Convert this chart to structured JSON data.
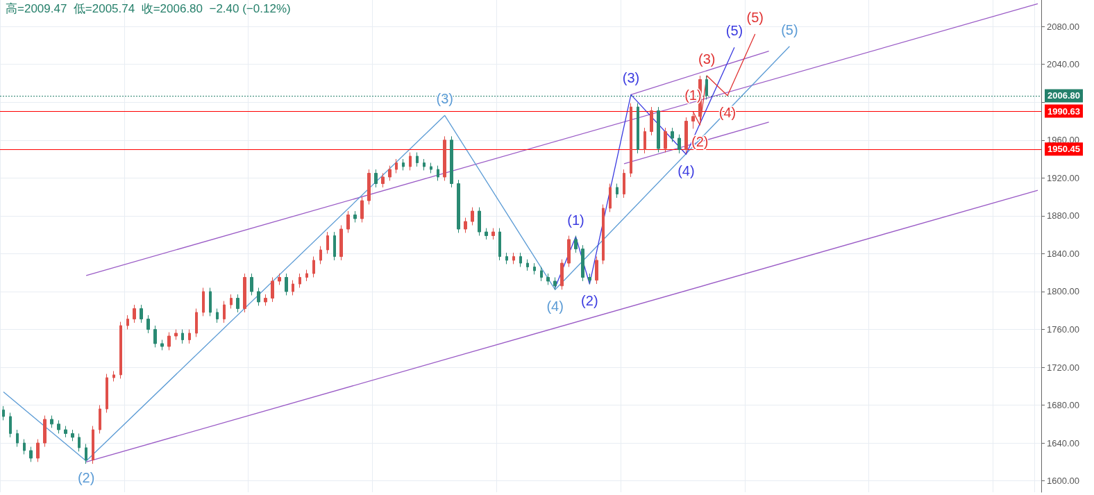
{
  "chart_data": {
    "type": "candlestick",
    "annotations": [
      "高=2009.47  低=2005.74  收=2006.80  −2.40 (−0.12%)",
      {
        "text": "(2)",
        "y": 1621
      },
      {
        "text": "(3)",
        "y": 1986
      },
      {
        "text": "(4)",
        "y": 1802
      },
      {
        "text": "(5)",
        "y": 2059
      },
      {
        "text": "(1)",
        "y": 1858
      },
      {
        "text": "(2)",
        "y": 1808
      },
      {
        "text": "(3)",
        "y": 2008
      },
      {
        "text": "(4)",
        "y": 1945
      },
      {
        "text": "(5)",
        "y": 2058
      },
      {
        "text": "(1)",
        "y": 1990
      },
      {
        "text": "(2)",
        "y": 1976
      },
      {
        "text": "(3)",
        "y": 2028
      },
      {
        "text": "(4)",
        "y": 2007
      },
      {
        "text": "(5)",
        "y": 2072
      }
    ],
    "categories": [
      null,
      null,
      null,
      null,
      null,
      null,
      null,
      null,
      null,
      null,
      null,
      null,
      null,
      null,
      null,
      null,
      null,
      null,
      null,
      null,
      null,
      null,
      null,
      null,
      null,
      null,
      null,
      null,
      null,
      null,
      null,
      null,
      null,
      null,
      null,
      null,
      null,
      null,
      null,
      null,
      null,
      null,
      null,
      null,
      null,
      null,
      null,
      null,
      null,
      null,
      null,
      null,
      null,
      null,
      null,
      null,
      null,
      null,
      null,
      null,
      null,
      null,
      null,
      null,
      null,
      null,
      null,
      null,
      null,
      null,
      null,
      null,
      null,
      null,
      null,
      null,
      null,
      null,
      null,
      null,
      null,
      null,
      null,
      null,
      null,
      null,
      null,
      null,
      null,
      null,
      null,
      null,
      null,
      null,
      null,
      null,
      null,
      null,
      null,
      null,
      null,
      null,
      null,
      null,
      null,
      null,
      null,
      null,
      null,
      null,
      null,
      null,
      null,
      null,
      null,
      null,
      null,
      null,
      null,
      null,
      null,
      null,
      null,
      null,
      null,
      null,
      null,
      null,
      null,
      null,
      null,
      null,
      null,
      null,
      null,
      null,
      null,
      null,
      null,
      null,
      null,
      null,
      null,
      null,
      null,
      null,
      null,
      null,
      null,
      null,
      null
    ],
    "ohlc": [
      [
        1675,
        1679,
        1664,
        1668
      ],
      [
        1668,
        1672,
        1646,
        1650
      ],
      [
        1650,
        1654,
        1636,
        1640
      ],
      [
        1640,
        1644,
        1628,
        1632
      ],
      [
        1632,
        1636,
        1620,
        1624
      ],
      [
        1624,
        1644,
        1620,
        1640
      ],
      [
        1640,
        1669,
        1636,
        1665
      ],
      [
        1665,
        1669,
        1656,
        1660
      ],
      [
        1660,
        1664,
        1650,
        1654
      ],
      [
        1654,
        1658,
        1646,
        1650
      ],
      [
        1650,
        1654,
        1642,
        1646
      ],
      [
        1646,
        1650,
        1631,
        1635
      ],
      [
        1635,
        1639,
        1618,
        1622
      ],
      [
        1622,
        1658,
        1618,
        1654
      ],
      [
        1654,
        1680,
        1650,
        1676
      ],
      [
        1676,
        1713,
        1672,
        1709
      ],
      [
        1709,
        1716,
        1705,
        1712
      ],
      [
        1712,
        1768,
        1708,
        1764
      ],
      [
        1764,
        1775,
        1760,
        1771
      ],
      [
        1771,
        1786,
        1767,
        1782
      ],
      [
        1782,
        1786,
        1767,
        1771
      ],
      [
        1771,
        1775,
        1756,
        1760
      ],
      [
        1760,
        1764,
        1741,
        1745
      ],
      [
        1745,
        1749,
        1738,
        1742
      ],
      [
        1742,
        1757,
        1738,
        1753
      ],
      [
        1753,
        1760,
        1749,
        1756
      ],
      [
        1756,
        1760,
        1745,
        1749
      ],
      [
        1749,
        1760,
        1745,
        1756
      ],
      [
        1756,
        1782,
        1752,
        1778
      ],
      [
        1778,
        1804,
        1774,
        1800
      ],
      [
        1800,
        1804,
        1774,
        1778
      ],
      [
        1778,
        1782,
        1767,
        1771
      ],
      [
        1771,
        1790,
        1767,
        1786
      ],
      [
        1786,
        1797,
        1782,
        1793
      ],
      [
        1793,
        1797,
        1778,
        1782
      ],
      [
        1782,
        1819,
        1778,
        1815
      ],
      [
        1815,
        1819,
        1796,
        1800
      ],
      [
        1800,
        1804,
        1785,
        1789
      ],
      [
        1789,
        1797,
        1785,
        1793
      ],
      [
        1793,
        1815,
        1789,
        1811
      ],
      [
        1811,
        1819,
        1807,
        1815
      ],
      [
        1815,
        1819,
        1796,
        1800
      ],
      [
        1800,
        1812,
        1796,
        1808
      ],
      [
        1808,
        1819,
        1804,
        1815
      ],
      [
        1815,
        1823,
        1811,
        1819
      ],
      [
        1819,
        1837,
        1815,
        1833
      ],
      [
        1833,
        1848,
        1829,
        1844
      ],
      [
        1844,
        1863,
        1840,
        1859
      ],
      [
        1859,
        1863,
        1833,
        1837
      ],
      [
        1837,
        1870,
        1833,
        1866
      ],
      [
        1866,
        1885,
        1862,
        1881
      ],
      [
        1881,
        1885,
        1873,
        1877
      ],
      [
        1877,
        1900,
        1873,
        1896
      ],
      [
        1896,
        1929,
        1892,
        1925
      ],
      [
        1925,
        1929,
        1910,
        1914
      ],
      [
        1914,
        1925,
        1910,
        1921
      ],
      [
        1921,
        1933,
        1917,
        1929
      ],
      [
        1929,
        1940,
        1925,
        1936
      ],
      [
        1936,
        1940,
        1928,
        1932
      ],
      [
        1932,
        1947,
        1928,
        1943
      ],
      [
        1943,
        1947,
        1932,
        1936
      ],
      [
        1936,
        1940,
        1928,
        1932
      ],
      [
        1932,
        1936,
        1925,
        1929
      ],
      [
        1929,
        1933,
        1917,
        1921
      ],
      [
        1921,
        1964,
        1917,
        1960
      ],
      [
        1960,
        1964,
        1910,
        1914
      ],
      [
        1914,
        1918,
        1862,
        1866
      ],
      [
        1866,
        1878,
        1862,
        1874
      ],
      [
        1874,
        1889,
        1870,
        1885
      ],
      [
        1885,
        1889,
        1859,
        1863
      ],
      [
        1863,
        1867,
        1855,
        1859
      ],
      [
        1859,
        1867,
        1855,
        1863
      ],
      [
        1863,
        1867,
        1833,
        1837
      ],
      [
        1837,
        1841,
        1829,
        1833
      ],
      [
        1833,
        1841,
        1829,
        1837
      ],
      [
        1837,
        1841,
        1826,
        1830
      ],
      [
        1830,
        1834,
        1822,
        1826
      ],
      [
        1826,
        1830,
        1818,
        1822
      ],
      [
        1822,
        1826,
        1811,
        1815
      ],
      [
        1815,
        1819,
        1807,
        1811
      ],
      [
        1811,
        1815,
        1802,
        1806
      ],
      [
        1806,
        1834,
        1802,
        1830
      ],
      [
        1830,
        1859,
        1826,
        1855
      ],
      [
        1855,
        1859,
        1841,
        1845
      ],
      [
        1845,
        1849,
        1811,
        1815
      ],
      [
        1815,
        1819,
        1808,
        1812
      ],
      [
        1812,
        1837,
        1808,
        1833
      ],
      [
        1833,
        1892,
        1829,
        1888
      ],
      [
        1888,
        1914,
        1884,
        1910
      ],
      [
        1910,
        1914,
        1899,
        1903
      ],
      [
        1903,
        1929,
        1899,
        1925
      ],
      [
        1925,
        1999,
        1921,
        1995
      ],
      [
        1995,
        1999,
        1946,
        1950
      ],
      [
        1950,
        1973,
        1946,
        1969
      ],
      [
        1969,
        1995,
        1965,
        1991
      ],
      [
        1991,
        1995,
        1947,
        1951
      ],
      [
        1951,
        1973,
        1947,
        1969
      ],
      [
        1969,
        1973,
        1958,
        1962
      ],
      [
        1962,
        1966,
        1946,
        1950
      ],
      [
        1950,
        1984,
        1946,
        1980
      ],
      [
        1980,
        1988,
        1972,
        1985
      ],
      [
        1985,
        2028,
        1981,
        2024
      ],
      [
        2024,
        2028,
        2002.8,
        2006.8
      ],
      null,
      null,
      null,
      null,
      null,
      null,
      null,
      null,
      null,
      null,
      null,
      null,
      null,
      null,
      null,
      null,
      null,
      null,
      null,
      null,
      null,
      null,
      null,
      null,
      null,
      null,
      null,
      null,
      null,
      null,
      null,
      null,
      null,
      null,
      null,
      null,
      null,
      null,
      null,
      null,
      null,
      null,
      null,
      null,
      null,
      null,
      null,
      null
    ],
    "series": [
      {
        "type": "line",
        "color": "#9a5bc6",
        "values": [
          null,
          null,
          null,
          null,
          null,
          null,
          null,
          null,
          null,
          null,
          null,
          null,
          1817,
          null,
          null,
          null,
          null,
          null,
          null,
          null,
          null,
          null,
          null,
          null,
          null,
          null,
          null,
          null,
          null,
          null,
          null,
          null,
          null,
          null,
          null,
          null,
          null,
          null,
          null,
          null,
          null,
          null,
          null,
          null,
          null,
          null,
          null,
          null,
          null,
          null,
          null,
          null,
          null,
          null,
          null,
          null,
          null,
          null,
          null,
          null,
          null,
          null,
          null,
          null,
          null,
          null,
          null,
          null,
          null,
          null,
          null,
          null,
          null,
          null,
          null,
          null,
          null,
          null,
          null,
          null,
          null,
          null,
          null,
          null,
          null,
          null,
          null,
          null,
          null,
          null,
          null,
          null,
          null,
          null,
          null,
          null,
          null,
          null,
          null,
          null,
          null,
          null,
          null,
          null,
          null,
          null,
          null,
          null,
          null,
          null,
          null,
          null,
          null,
          null,
          null,
          null,
          null,
          null,
          null,
          null,
          null,
          null,
          null,
          null,
          null,
          null,
          null,
          null,
          null,
          null,
          null,
          null,
          null,
          null,
          null,
          null,
          null,
          null,
          null,
          null,
          null,
          null,
          null,
          null,
          null,
          null,
          null,
          null,
          null,
          null,
          2104
        ]
      },
      {
        "type": "line",
        "color": "#9a5bc6",
        "values": [
          null,
          null,
          null,
          null,
          null,
          null,
          null,
          null,
          null,
          null,
          null,
          null,
          1620,
          null,
          null,
          null,
          null,
          null,
          null,
          null,
          null,
          null,
          null,
          null,
          null,
          null,
          null,
          null,
          null,
          null,
          null,
          null,
          null,
          null,
          null,
          null,
          null,
          null,
          null,
          null,
          null,
          null,
          null,
          null,
          null,
          null,
          null,
          null,
          null,
          null,
          null,
          null,
          null,
          null,
          null,
          null,
          null,
          null,
          null,
          null,
          null,
          null,
          null,
          null,
          null,
          null,
          null,
          null,
          null,
          null,
          null,
          null,
          null,
          null,
          null,
          null,
          null,
          null,
          null,
          null,
          null,
          null,
          null,
          null,
          null,
          null,
          null,
          null,
          null,
          null,
          null,
          null,
          null,
          null,
          null,
          null,
          null,
          null,
          null,
          null,
          null,
          null,
          null,
          null,
          null,
          null,
          null,
          null,
          null,
          null,
          null,
          null,
          null,
          null,
          null,
          null,
          null,
          null,
          null,
          null,
          null,
          null,
          null,
          null,
          null,
          null,
          null,
          null,
          null,
          null,
          null,
          null,
          null,
          null,
          null,
          null,
          null,
          null,
          null,
          null,
          null,
          null,
          null,
          null,
          null,
          null,
          null,
          null,
          null,
          null,
          1907
        ]
      },
      {
        "type": "line",
        "color": "#9a5bc6",
        "values": [
          null,
          null,
          null,
          null,
          null,
          null,
          null,
          null,
          null,
          null,
          null,
          null,
          null,
          null,
          null,
          null,
          null,
          null,
          null,
          null,
          null,
          null,
          null,
          null,
          null,
          null,
          null,
          null,
          null,
          null,
          null,
          null,
          null,
          null,
          null,
          null,
          null,
          null,
          null,
          null,
          null,
          null,
          null,
          null,
          null,
          null,
          null,
          null,
          null,
          null,
          null,
          null,
          null,
          null,
          null,
          null,
          null,
          null,
          null,
          null,
          null,
          null,
          null,
          null,
          null,
          null,
          null,
          null,
          null,
          null,
          null,
          null,
          null,
          null,
          null,
          null,
          null,
          null,
          null,
          null,
          null,
          null,
          null,
          null,
          null,
          null,
          null,
          null,
          null,
          null,
          null,
          2008,
          null,
          null,
          null,
          null,
          null,
          null,
          null,
          null,
          null,
          null,
          null,
          null,
          null,
          null,
          null,
          null,
          null,
          null,
          null,
          2054,
          null,
          null,
          null,
          null,
          null,
          null,
          null,
          null,
          null,
          null,
          null,
          null,
          null,
          null,
          null,
          null,
          null,
          null,
          null,
          null,
          null,
          null,
          null,
          null,
          null,
          null,
          null,
          null,
          null,
          null,
          null,
          null,
          null,
          null,
          null,
          null,
          null,
          null,
          null
        ]
      },
      {
        "type": "line",
        "color": "#9a5bc6",
        "values": [
          null,
          null,
          null,
          null,
          null,
          null,
          null,
          null,
          null,
          null,
          null,
          null,
          null,
          null,
          null,
          null,
          null,
          null,
          null,
          null,
          null,
          null,
          null,
          null,
          null,
          null,
          null,
          null,
          null,
          null,
          null,
          null,
          null,
          null,
          null,
          null,
          null,
          null,
          null,
          null,
          null,
          null,
          null,
          null,
          null,
          null,
          null,
          null,
          null,
          null,
          null,
          null,
          null,
          null,
          null,
          null,
          null,
          null,
          null,
          null,
          null,
          null,
          null,
          null,
          null,
          null,
          null,
          null,
          null,
          null,
          null,
          null,
          null,
          null,
          null,
          null,
          null,
          null,
          null,
          null,
          null,
          null,
          null,
          null,
          null,
          null,
          null,
          null,
          null,
          null,
          1935,
          null,
          null,
          null,
          null,
          null,
          null,
          null,
          null,
          null,
          null,
          null,
          null,
          null,
          null,
          null,
          null,
          null,
          null,
          null,
          null,
          1979,
          null,
          null,
          null,
          null,
          null,
          null,
          null,
          null,
          null,
          null,
          null,
          null,
          null,
          null,
          null,
          null,
          null,
          null,
          null,
          null,
          null,
          null,
          null,
          null,
          null,
          null,
          null,
          null,
          null,
          null,
          null,
          null,
          null,
          null,
          null,
          null,
          null,
          null,
          null
        ]
      },
      {
        "type": "line",
        "color": "#5b9bd5",
        "values": [
          1694,
          null,
          null,
          null,
          null,
          null,
          null,
          null,
          null,
          null,
          null,
          null,
          1621,
          null,
          null,
          null,
          null,
          null,
          null,
          null,
          null,
          null,
          null,
          null,
          null,
          null,
          null,
          null,
          null,
          null,
          null,
          null,
          null,
          null,
          null,
          null,
          null,
          null,
          null,
          null,
          null,
          null,
          null,
          null,
          null,
          null,
          null,
          null,
          null,
          null,
          null,
          null,
          null,
          null,
          null,
          null,
          null,
          null,
          null,
          null,
          null,
          null,
          null,
          null,
          1986,
          null,
          null,
          null,
          null,
          null,
          null,
          null,
          null,
          null,
          null,
          null,
          null,
          null,
          null,
          null,
          1802,
          null,
          null,
          null,
          null,
          null,
          null,
          null,
          null,
          null,
          null,
          null,
          null,
          null,
          null,
          null,
          null,
          null,
          null,
          null,
          null,
          null,
          null,
          null,
          null,
          null,
          null,
          null,
          null,
          null,
          null,
          null,
          null,
          null,
          2059,
          null,
          null,
          null,
          null,
          null,
          null,
          null,
          null,
          null,
          null,
          null,
          null,
          null,
          null,
          null,
          null,
          null,
          null,
          null,
          null,
          null,
          null,
          null,
          null,
          null,
          null,
          null,
          null,
          null,
          null,
          null,
          null,
          null,
          null,
          null,
          null
        ]
      },
      {
        "type": "line",
        "color": "#3b3be0",
        "values": [
          null,
          null,
          null,
          null,
          null,
          null,
          null,
          null,
          null,
          null,
          null,
          null,
          null,
          null,
          null,
          null,
          null,
          null,
          null,
          null,
          null,
          null,
          null,
          null,
          null,
          null,
          null,
          null,
          null,
          null,
          null,
          null,
          null,
          null,
          null,
          null,
          null,
          null,
          null,
          null,
          null,
          null,
          null,
          null,
          null,
          null,
          null,
          null,
          null,
          null,
          null,
          null,
          null,
          null,
          null,
          null,
          null,
          null,
          null,
          null,
          null,
          null,
          null,
          null,
          null,
          null,
          null,
          null,
          null,
          null,
          null,
          null,
          null,
          null,
          null,
          null,
          null,
          null,
          null,
          null,
          1804,
          null,
          null,
          1858,
          null,
          1808,
          null,
          null,
          null,
          null,
          null,
          2008,
          null,
          null,
          null,
          null,
          null,
          null,
          null,
          1945,
          null,
          null,
          null,
          null,
          null,
          null,
          2058,
          null,
          null,
          null,
          null,
          null,
          null,
          null,
          null,
          null,
          null,
          null,
          null,
          null,
          null,
          null,
          null,
          null,
          null,
          null,
          null,
          null,
          null,
          null,
          null,
          null,
          null,
          null,
          null,
          null,
          null,
          null,
          null,
          null,
          null,
          null,
          null,
          null,
          null,
          null,
          null,
          null,
          null,
          null,
          null
        ]
      },
      {
        "type": "line",
        "color": "#e03333",
        "values": [
          null,
          null,
          null,
          null,
          null,
          null,
          null,
          null,
          null,
          null,
          null,
          null,
          null,
          null,
          null,
          null,
          null,
          null,
          null,
          null,
          null,
          null,
          null,
          null,
          null,
          null,
          null,
          null,
          null,
          null,
          null,
          null,
          null,
          null,
          null,
          null,
          null,
          null,
          null,
          null,
          null,
          null,
          null,
          null,
          null,
          null,
          null,
          null,
          null,
          null,
          null,
          null,
          null,
          null,
          null,
          null,
          null,
          null,
          null,
          null,
          null,
          null,
          null,
          null,
          null,
          null,
          null,
          null,
          null,
          null,
          null,
          null,
          null,
          null,
          null,
          null,
          null,
          null,
          null,
          null,
          null,
          null,
          null,
          null,
          null,
          null,
          null,
          null,
          null,
          null,
          null,
          null,
          null,
          null,
          null,
          null,
          null,
          null,
          null,
          null,
          1990,
          1976,
          2028,
          null,
          null,
          2007,
          null,
          null,
          null,
          2072,
          null,
          null,
          null,
          null,
          null,
          null,
          null,
          null,
          null,
          null,
          null,
          null,
          null,
          null,
          null,
          null,
          null,
          null,
          null,
          null,
          null,
          null,
          null,
          null,
          null,
          null,
          null,
          null,
          null,
          null,
          null,
          null,
          null,
          null,
          null,
          null,
          null,
          null,
          null,
          null,
          null
        ]
      }
    ],
    "ref_lines": [
      {
        "axis": "y",
        "value": 2006.8,
        "label": "2006.80",
        "color": "#24806b",
        "line_style": "dotted"
      },
      {
        "axis": "y",
        "value": 1990.63,
        "label": "1990.63",
        "color": "#ff0000",
        "line_style": "solid"
      },
      {
        "axis": "y",
        "value": 1950.45,
        "label": "1950.45",
        "color": "#ff0000",
        "line_style": "solid"
      }
    ],
    "ylim": [
      1588,
      2108
    ],
    "yticks": [
      {
        "value": 1600,
        "label": "1600.00"
      },
      {
        "value": 1640,
        "label": "1640.00"
      },
      {
        "value": 1680,
        "label": "1680.00"
      },
      {
        "value": 1720,
        "label": "1720.00"
      },
      {
        "value": 1760,
        "label": "1760.00"
      },
      {
        "value": 1800,
        "label": "1800.00"
      },
      {
        "value": 1840,
        "label": "1840.00"
      },
      {
        "value": 1880,
        "label": "1880.00"
      },
      {
        "value": 1920,
        "label": "1920.00"
      },
      {
        "value": 1960,
        "label": "1960.00"
      },
      {
        "value": 2000,
        "label": null
      },
      {
        "value": 2040,
        "label": "2040.00"
      },
      {
        "value": 2080,
        "label": "2080.00"
      }
    ],
    "grid": true,
    "tick_labels": "y"
  }
}
